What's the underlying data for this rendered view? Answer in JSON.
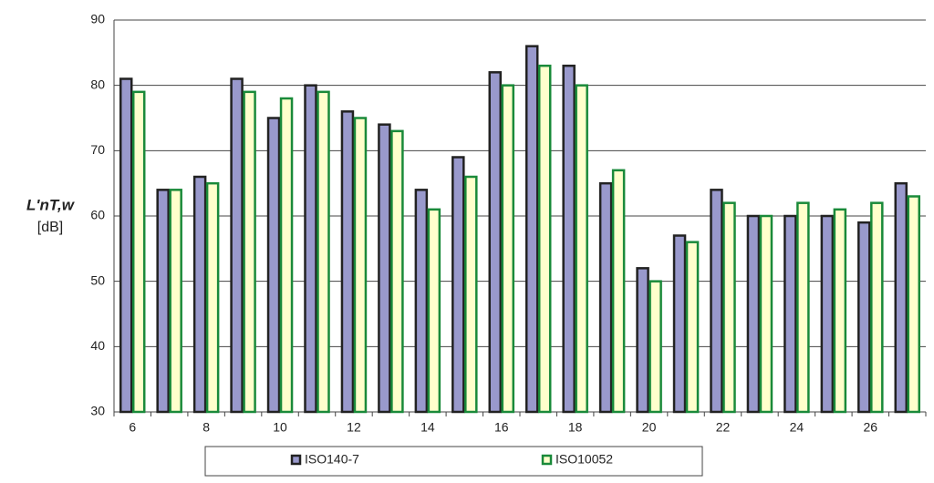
{
  "chart_data": {
    "type": "bar",
    "y_label": "L'nT,w",
    "y_unit": "[dB]",
    "categories": [
      "6",
      null,
      "8",
      null,
      "10",
      null,
      "12",
      null,
      "14",
      null,
      "16",
      null,
      "18",
      null,
      "20",
      null,
      "22",
      null,
      "24",
      null,
      "26",
      null
    ],
    "series": [
      {
        "name": "ISO140-7",
        "color": "#9999cc",
        "stroke": "#222222",
        "values": [
          81,
          64,
          66,
          81,
          75,
          80,
          76,
          74,
          64,
          69,
          82,
          86,
          83,
          65,
          52,
          57,
          64,
          60,
          60,
          60,
          59,
          65
        ]
      },
      {
        "name": "ISO10052",
        "color": "#ffffcc",
        "stroke": "#1a8a3a",
        "values": [
          79,
          64,
          65,
          79,
          78,
          79,
          75,
          73,
          61,
          66,
          80,
          83,
          80,
          67,
          50,
          56,
          62,
          60,
          62,
          61,
          62,
          63
        ]
      }
    ],
    "ylim": [
      30,
      90
    ],
    "yticks": [
      30,
      40,
      50,
      60,
      70,
      80,
      90
    ],
    "grid": true,
    "legend": "bottom"
  }
}
